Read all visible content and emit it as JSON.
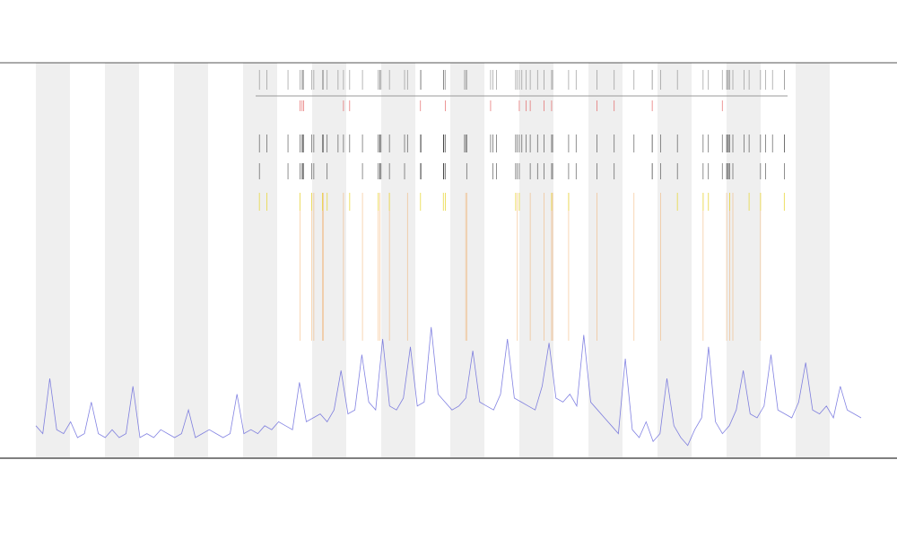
{
  "chart_data": {
    "type": "line",
    "series": [
      {
        "color": "#5a5ad8",
        "values": [
          8,
          6,
          20,
          7,
          6,
          9,
          5,
          6,
          14,
          6,
          5,
          7,
          5,
          6,
          18,
          5,
          6,
          5,
          7,
          6,
          5,
          6,
          12,
          5,
          6,
          7,
          6,
          5,
          6,
          16,
          6,
          7,
          6,
          8,
          7,
          9,
          8,
          7,
          19,
          9,
          10,
          11,
          9,
          12,
          22,
          11,
          12,
          26,
          14,
          12,
          30,
          13,
          12,
          15,
          28,
          13,
          14,
          33,
          16,
          14,
          12,
          13,
          15,
          27,
          14,
          13,
          12,
          16,
          30,
          15,
          14,
          13,
          12,
          18,
          29,
          15,
          14,
          16,
          13,
          31,
          14,
          12,
          10,
          8,
          6,
          25,
          7,
          5,
          9,
          4,
          6,
          20,
          8,
          5,
          3,
          7,
          10,
          28,
          9,
          6,
          8,
          12,
          22,
          11,
          10,
          13,
          26,
          12,
          11,
          10,
          14,
          24,
          12,
          11,
          13,
          10,
          18,
          12,
          11,
          10
        ]
      }
    ],
    "ylim": [
      0,
      100
    ]
  }
}
